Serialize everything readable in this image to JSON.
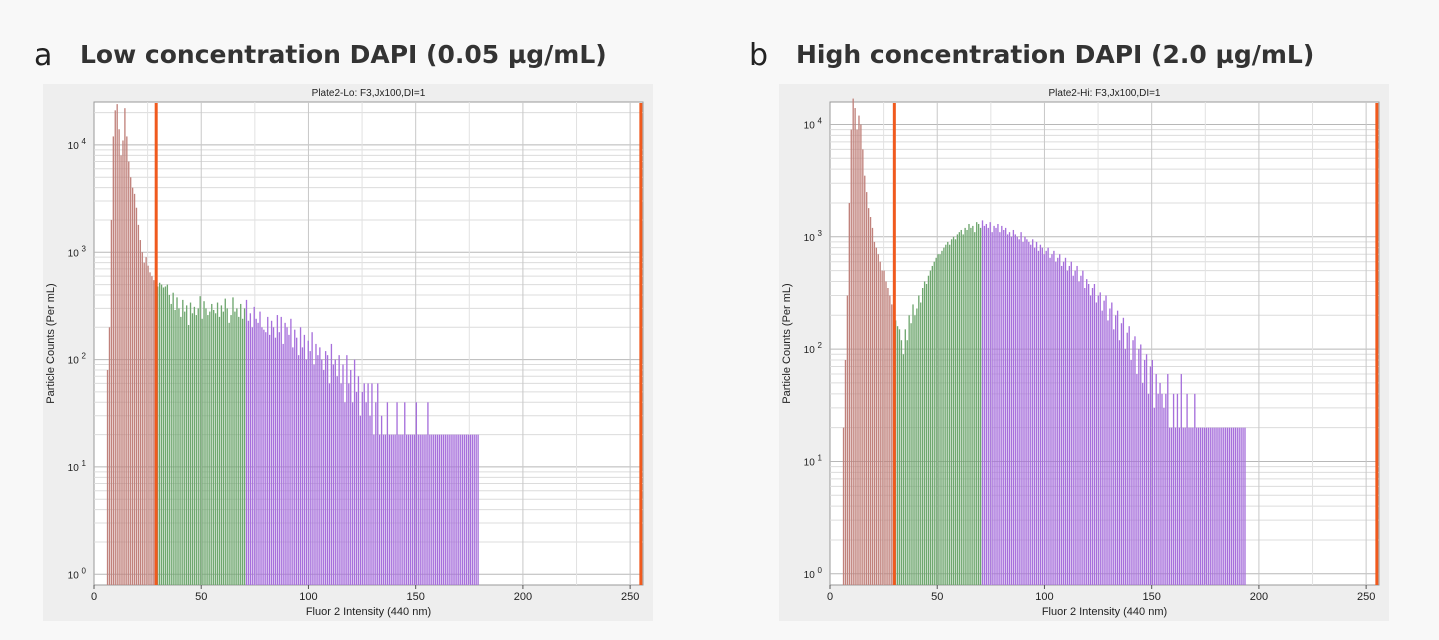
{
  "colors": {
    "background": "#f8f8f8",
    "plot_bg": "#ffffff",
    "gate": "#f05a1e",
    "region1": "#c0817b",
    "region2": "#6ea66e",
    "region3": "#a66fdb"
  },
  "panels": [
    {
      "letter": "a",
      "title": "Low concentration DAPI (0.05 µg/mL)"
    },
    {
      "letter": "b",
      "title": "High concentration DAPI (2.0 µg/mL)"
    }
  ],
  "chart_data": [
    {
      "type": "bar",
      "title": "Plate2-Lo: F3,Jx100,DI=1",
      "xlabel": "Fluor 2 Intensity (440 nm)",
      "ylabel": "Particle Counts (Per mL)",
      "xlim": [
        0,
        256
      ],
      "ylim_log10": [
        -0.1,
        4.4
      ],
      "log_scale_y": true,
      "grid": true,
      "xticks": [
        "0",
        "50",
        "100",
        "150",
        "200",
        "250"
      ],
      "ytick_labels": [
        {
          "base": "10",
          "exp": "0"
        },
        {
          "base": "10",
          "exp": "1"
        },
        {
          "base": "10",
          "exp": "2"
        },
        {
          "base": "10",
          "exp": "3"
        },
        {
          "base": "10",
          "exp": "4"
        }
      ],
      "gates": [
        29,
        255
      ],
      "region_breaks": [
        29,
        70
      ],
      "series": [
        {
          "x_start": 6,
          "x_step": 0.9,
          "values": [
            80,
            200,
            2000,
            12000,
            21000,
            24000,
            14000,
            8000,
            11000,
            22000,
            12000,
            7000,
            5000,
            4000,
            3500,
            2600,
            1800,
            1300,
            1000,
            800,
            900,
            750,
            650,
            600,
            550,
            500,
            480,
            520,
            500,
            470,
            480,
            500,
            400,
            330,
            420,
            290,
            380,
            300,
            250,
            360,
            280,
            320,
            210,
            340,
            270,
            310,
            260,
            300,
            390,
            240,
            350,
            300,
            260,
            280,
            330,
            290,
            270,
            340,
            250,
            320,
            280,
            370,
            300,
            220,
            260,
            380,
            280,
            300,
            250,
            330,
            240,
            300,
            360,
            230,
            270,
            200,
            310,
            240,
            220,
            280,
            200,
            190,
            180,
            250,
            170,
            230,
            200,
            160,
            260,
            180,
            250,
            140,
            220,
            200,
            170,
            240,
            130,
            190,
            160,
            110,
            200,
            130,
            170,
            100,
            150,
            120,
            180,
            90,
            140,
            110,
            130,
            100,
            80,
            120,
            110,
            60,
            140,
            90,
            100,
            70,
            110,
            60,
            90,
            40,
            110,
            60,
            80,
            40,
            100,
            50,
            70,
            30,
            50,
            60,
            40,
            60,
            30,
            60,
            20,
            40,
            60,
            20,
            30,
            20,
            20,
            40,
            20,
            20,
            20,
            20,
            40,
            20,
            20,
            20,
            40,
            20,
            20,
            20,
            20,
            20,
            40,
            20,
            20,
            20,
            20,
            20,
            40,
            20,
            20,
            20,
            20,
            20,
            20,
            20,
            20,
            20,
            20,
            20,
            20,
            20,
            20,
            20,
            20,
            20,
            20,
            20,
            20,
            20,
            20,
            20,
            20,
            20,
            20
          ]
        }
      ]
    },
    {
      "type": "bar",
      "title": "Plate2-Hi: F3,Jx100,DI=1",
      "xlabel": "Fluor 2 Intensity (440 nm)",
      "ylabel": "Particle Counts (Per mL)",
      "xlim": [
        0,
        256
      ],
      "ylim_log10": [
        -0.1,
        4.2
      ],
      "log_scale_y": true,
      "grid": true,
      "xticks": [
        "0",
        "50",
        "100",
        "150",
        "200",
        "250"
      ],
      "ytick_labels": [
        {
          "base": "10",
          "exp": "0"
        },
        {
          "base": "10",
          "exp": "1"
        },
        {
          "base": "10",
          "exp": "2"
        },
        {
          "base": "10",
          "exp": "3"
        },
        {
          "base": "10",
          "exp": "4"
        }
      ],
      "gates": [
        30,
        255
      ],
      "region_breaks": [
        30,
        70
      ],
      "series": [
        {
          "x_start": 6,
          "x_step": 0.9,
          "values": [
            20,
            80,
            300,
            2000,
            9000,
            17000,
            14000,
            9000,
            12000,
            10000,
            6000,
            3500,
            2500,
            1800,
            1500,
            1200,
            900,
            800,
            700,
            600,
            500,
            500,
            400,
            350,
            300,
            250,
            200,
            180,
            160,
            150,
            120,
            90,
            150,
            120,
            200,
            170,
            250,
            200,
            230,
            300,
            260,
            350,
            400,
            380,
            450,
            500,
            550,
            600,
            650,
            700,
            700,
            750,
            800,
            850,
            900,
            850,
            950,
            1000,
            950,
            1050,
            1100,
            1150,
            1050,
            1200,
            1150,
            1300,
            1200,
            1250,
            1100,
            1350,
            1300,
            1200,
            1400,
            1250,
            1300,
            1200,
            1350,
            1100,
            1250,
            1200,
            1300,
            1100,
            1250,
            1150,
            1200,
            1050,
            1100,
            1000,
            1150,
            1050,
            1000,
            950,
            1100,
            900,
            1000,
            950,
            900,
            850,
            950,
            800,
            900,
            750,
            850,
            800,
            700,
            750,
            800,
            650,
            700,
            750,
            600,
            650,
            700,
            550,
            600,
            650,
            500,
            550,
            600,
            450,
            500,
            550,
            400,
            450,
            500,
            350,
            420,
            380,
            300,
            350,
            380,
            260,
            300,
            320,
            220,
            270,
            300,
            180,
            230,
            260,
            150,
            200,
            220,
            120,
            170,
            190,
            100,
            140,
            160,
            80,
            120,
            130,
            60,
            100,
            110,
            50,
            80,
            90,
            40,
            70,
            80,
            30,
            60,
            40,
            50,
            40,
            30,
            40,
            60,
            20,
            20,
            40,
            20,
            40,
            20,
            60,
            20,
            20,
            40,
            20,
            20,
            20,
            40,
            20,
            20,
            20,
            20,
            20,
            20,
            20,
            20,
            20,
            20,
            20,
            20,
            20,
            20,
            20,
            20,
            20,
            20,
            20,
            20,
            20,
            20,
            20,
            20,
            20,
            20
          ]
        }
      ]
    }
  ]
}
